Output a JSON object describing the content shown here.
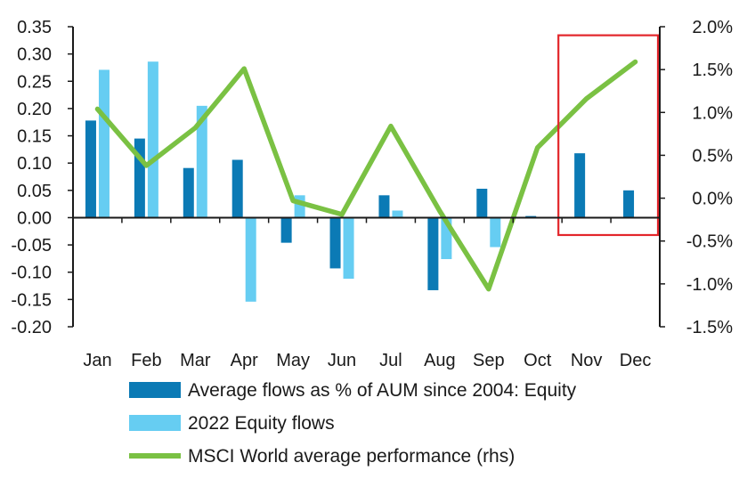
{
  "chart_data": {
    "type": "bar",
    "categories": [
      "Jan",
      "Feb",
      "Mar",
      "Apr",
      "May",
      "Jun",
      "Jul",
      "Aug",
      "Sep",
      "Oct",
      "Nov",
      "Dec"
    ],
    "series": [
      {
        "name": "Average flows as % of AUM since 2004: Equity",
        "type": "bar",
        "axis": "left",
        "color": "#0b7ab5",
        "values": [
          0.178,
          0.145,
          0.091,
          0.106,
          -0.046,
          -0.093,
          0.041,
          -0.133,
          0.053,
          0.003,
          0.118,
          0.05
        ]
      },
      {
        "name": "2022 Equity flows",
        "type": "bar",
        "axis": "left",
        "color": "#66cdf2",
        "values": [
          0.271,
          0.286,
          0.205,
          -0.154,
          0.041,
          -0.112,
          0.013,
          -0.076,
          -0.054,
          null,
          null,
          null
        ]
      },
      {
        "name": "MSCI World average performance (rhs)",
        "type": "line",
        "axis": "right",
        "color": "#7ac143",
        "values": [
          1.04,
          0.38,
          0.82,
          1.51,
          -0.03,
          -0.19,
          0.84,
          -0.15,
          -1.06,
          0.59,
          1.16,
          1.59
        ]
      }
    ],
    "y_left": {
      "range": [
        -0.2,
        0.35
      ],
      "ticks": [
        "0.35",
        "0.30",
        "0.25",
        "0.20",
        "0.15",
        "0.10",
        "0.05",
        "0.00",
        "-0.05",
        "-0.10",
        "-0.15",
        "-0.20"
      ]
    },
    "y_right": {
      "range": [
        -1.5,
        2.0
      ],
      "ticks": [
        "2.0%",
        "1.5%",
        "1.0%",
        "0.5%",
        "0.0%",
        "-0.5%",
        "-1.0%",
        "-1.5%"
      ]
    },
    "highlight": {
      "from": "Nov",
      "to": "Dec",
      "color": "#e3262b"
    },
    "grid": false,
    "legend_position": "bottom"
  }
}
